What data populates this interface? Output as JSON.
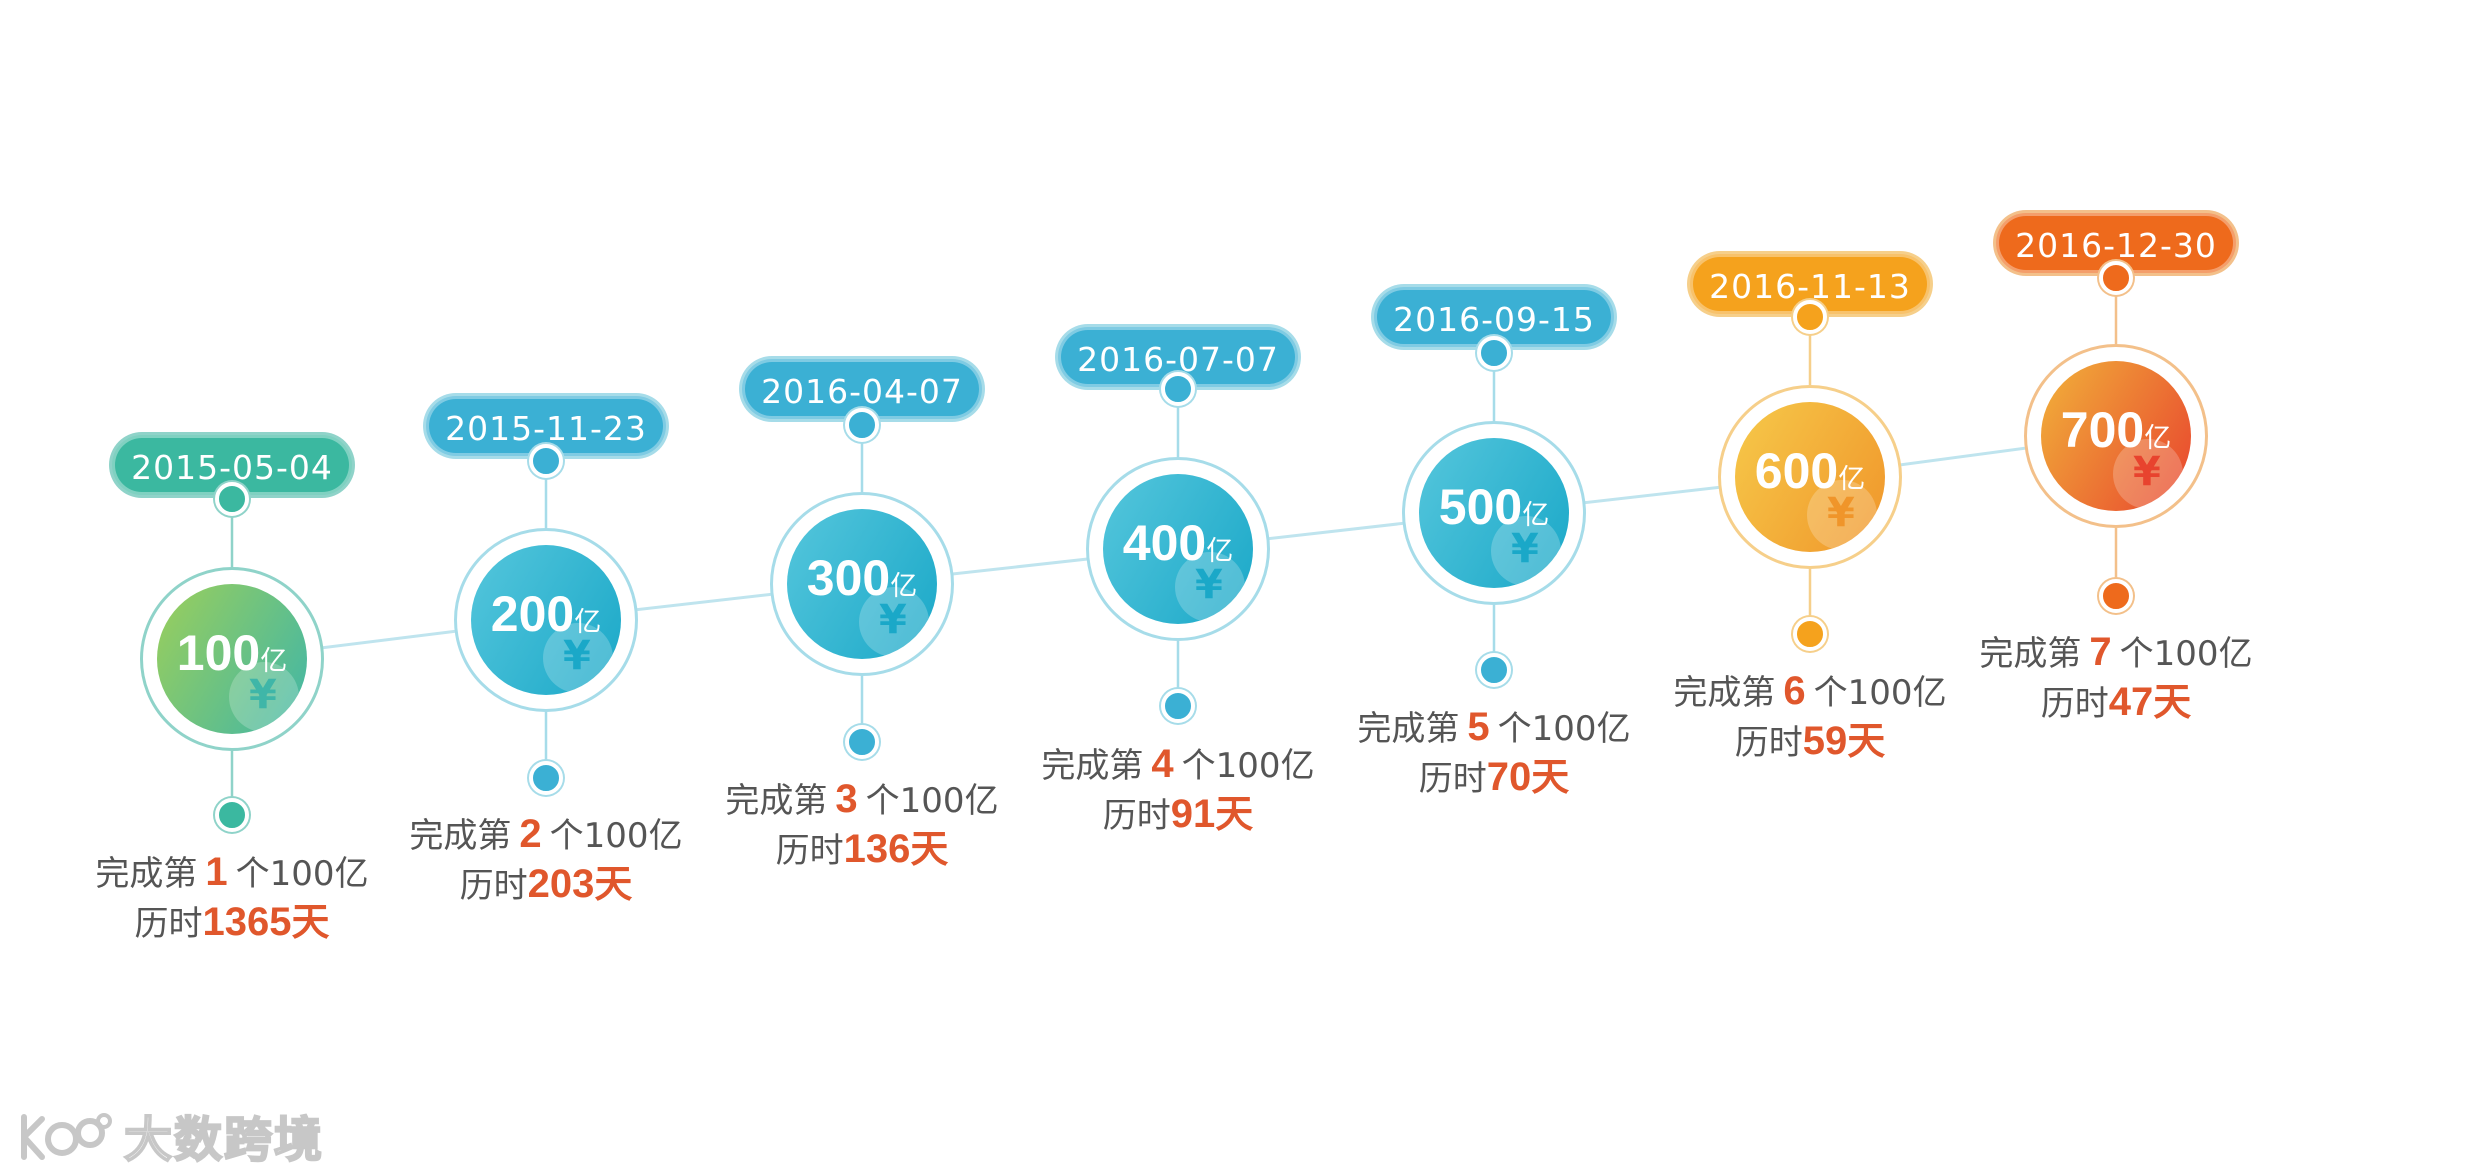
{
  "milestones": [
    {
      "date": "2015-05-04",
      "amount": "100",
      "unit": "亿",
      "nth": "1",
      "days": "1365",
      "color": "#3bb8a0",
      "gradient": [
        "#9ccf5a",
        "#3fb6a8"
      ],
      "ring": "#8fd3c9"
    },
    {
      "date": "2015-11-23",
      "amount": "200",
      "unit": "亿",
      "nth": "2",
      "days": "203",
      "color": "#3bb0d4",
      "gradient": [
        "#55c6dc",
        "#1aa8c8"
      ],
      "ring": "#a6dce9"
    },
    {
      "date": "2016-04-07",
      "amount": "300",
      "unit": "亿",
      "nth": "3",
      "days": "136",
      "color": "#3bb0d4",
      "gradient": [
        "#55c6dc",
        "#1aa8c8"
      ],
      "ring": "#a6dce9"
    },
    {
      "date": "2016-07-07",
      "amount": "400",
      "unit": "亿",
      "nth": "4",
      "days": "91",
      "color": "#3bb0d4",
      "gradient": [
        "#55c6dc",
        "#1aa8c8"
      ],
      "ring": "#a6dce9"
    },
    {
      "date": "2016-09-15",
      "amount": "500",
      "unit": "亿",
      "nth": "5",
      "days": "70",
      "color": "#3bb0d4",
      "gradient": [
        "#55c6dc",
        "#1aa8c8"
      ],
      "ring": "#a6dce9"
    },
    {
      "date": "2016-11-13",
      "amount": "600",
      "unit": "亿",
      "nth": "6",
      "days": "59",
      "color": "#f5a21d",
      "gradient": [
        "#f6c94a",
        "#f0952a"
      ],
      "ring": "#f6cf8a"
    },
    {
      "date": "2016-12-30",
      "amount": "700",
      "unit": "亿",
      "nth": "7",
      "days": "47",
      "color": "#ee6a1c",
      "gradient": [
        "#f1b23a",
        "#e8432e"
      ],
      "ring": "#f3c08a"
    }
  ],
  "caption": {
    "prefix": "完成第",
    "suffix": "个100亿",
    "duration_prefix": "历时",
    "duration_suffix": "天"
  },
  "yen_symbol": "¥",
  "watermark": {
    "logo": "kuajing-logo",
    "text": "大数跨境"
  }
}
